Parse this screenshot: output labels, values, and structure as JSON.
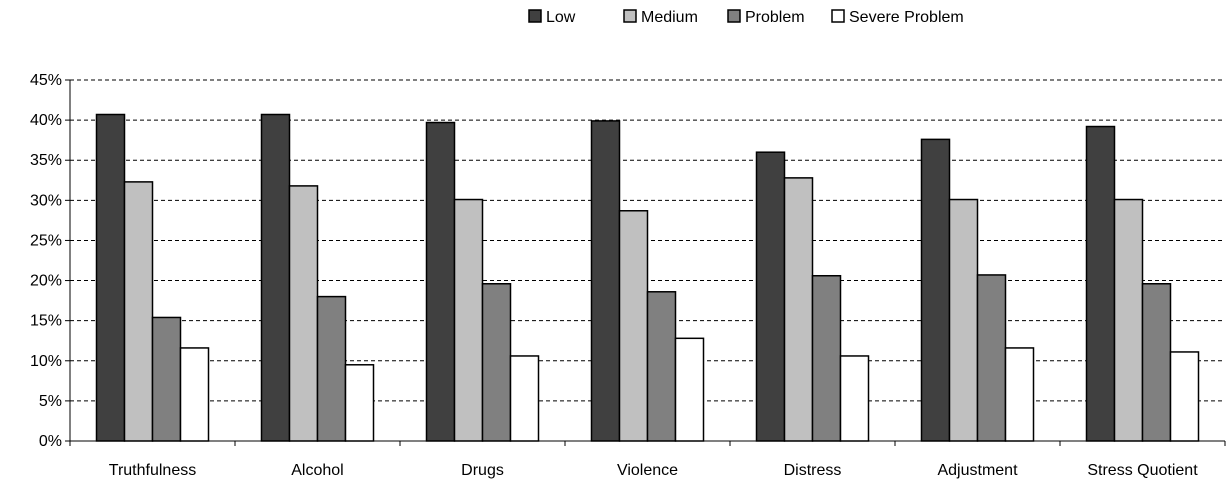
{
  "chart_data": {
    "type": "bar",
    "title": "",
    "xlabel": "",
    "ylabel": "",
    "categories": [
      "Truthfulness",
      "Alcohol",
      "Drugs",
      "Violence",
      "Distress",
      "Adjustment",
      "Stress Quotient"
    ],
    "series": [
      {
        "name": "Low",
        "color": "#404040",
        "values": [
          40.7,
          40.7,
          39.7,
          39.9,
          36.0,
          37.6,
          39.2
        ]
      },
      {
        "name": "Medium",
        "color": "#c0c0c0",
        "values": [
          32.3,
          31.8,
          30.1,
          28.7,
          32.8,
          30.1,
          30.1
        ]
      },
      {
        "name": "Problem",
        "color": "#808080",
        "values": [
          15.4,
          18.0,
          19.6,
          18.6,
          20.6,
          20.7,
          19.6
        ]
      },
      {
        "name": "Severe Problem",
        "color": "#ffffff",
        "values": [
          11.6,
          9.5,
          10.6,
          12.8,
          10.6,
          11.6,
          11.1
        ]
      }
    ],
    "ylim": [
      0,
      45
    ],
    "ytick_step": 5,
    "ytick_format": "percent",
    "grid": "horizontal-dashed",
    "legend_position": "top-right"
  }
}
